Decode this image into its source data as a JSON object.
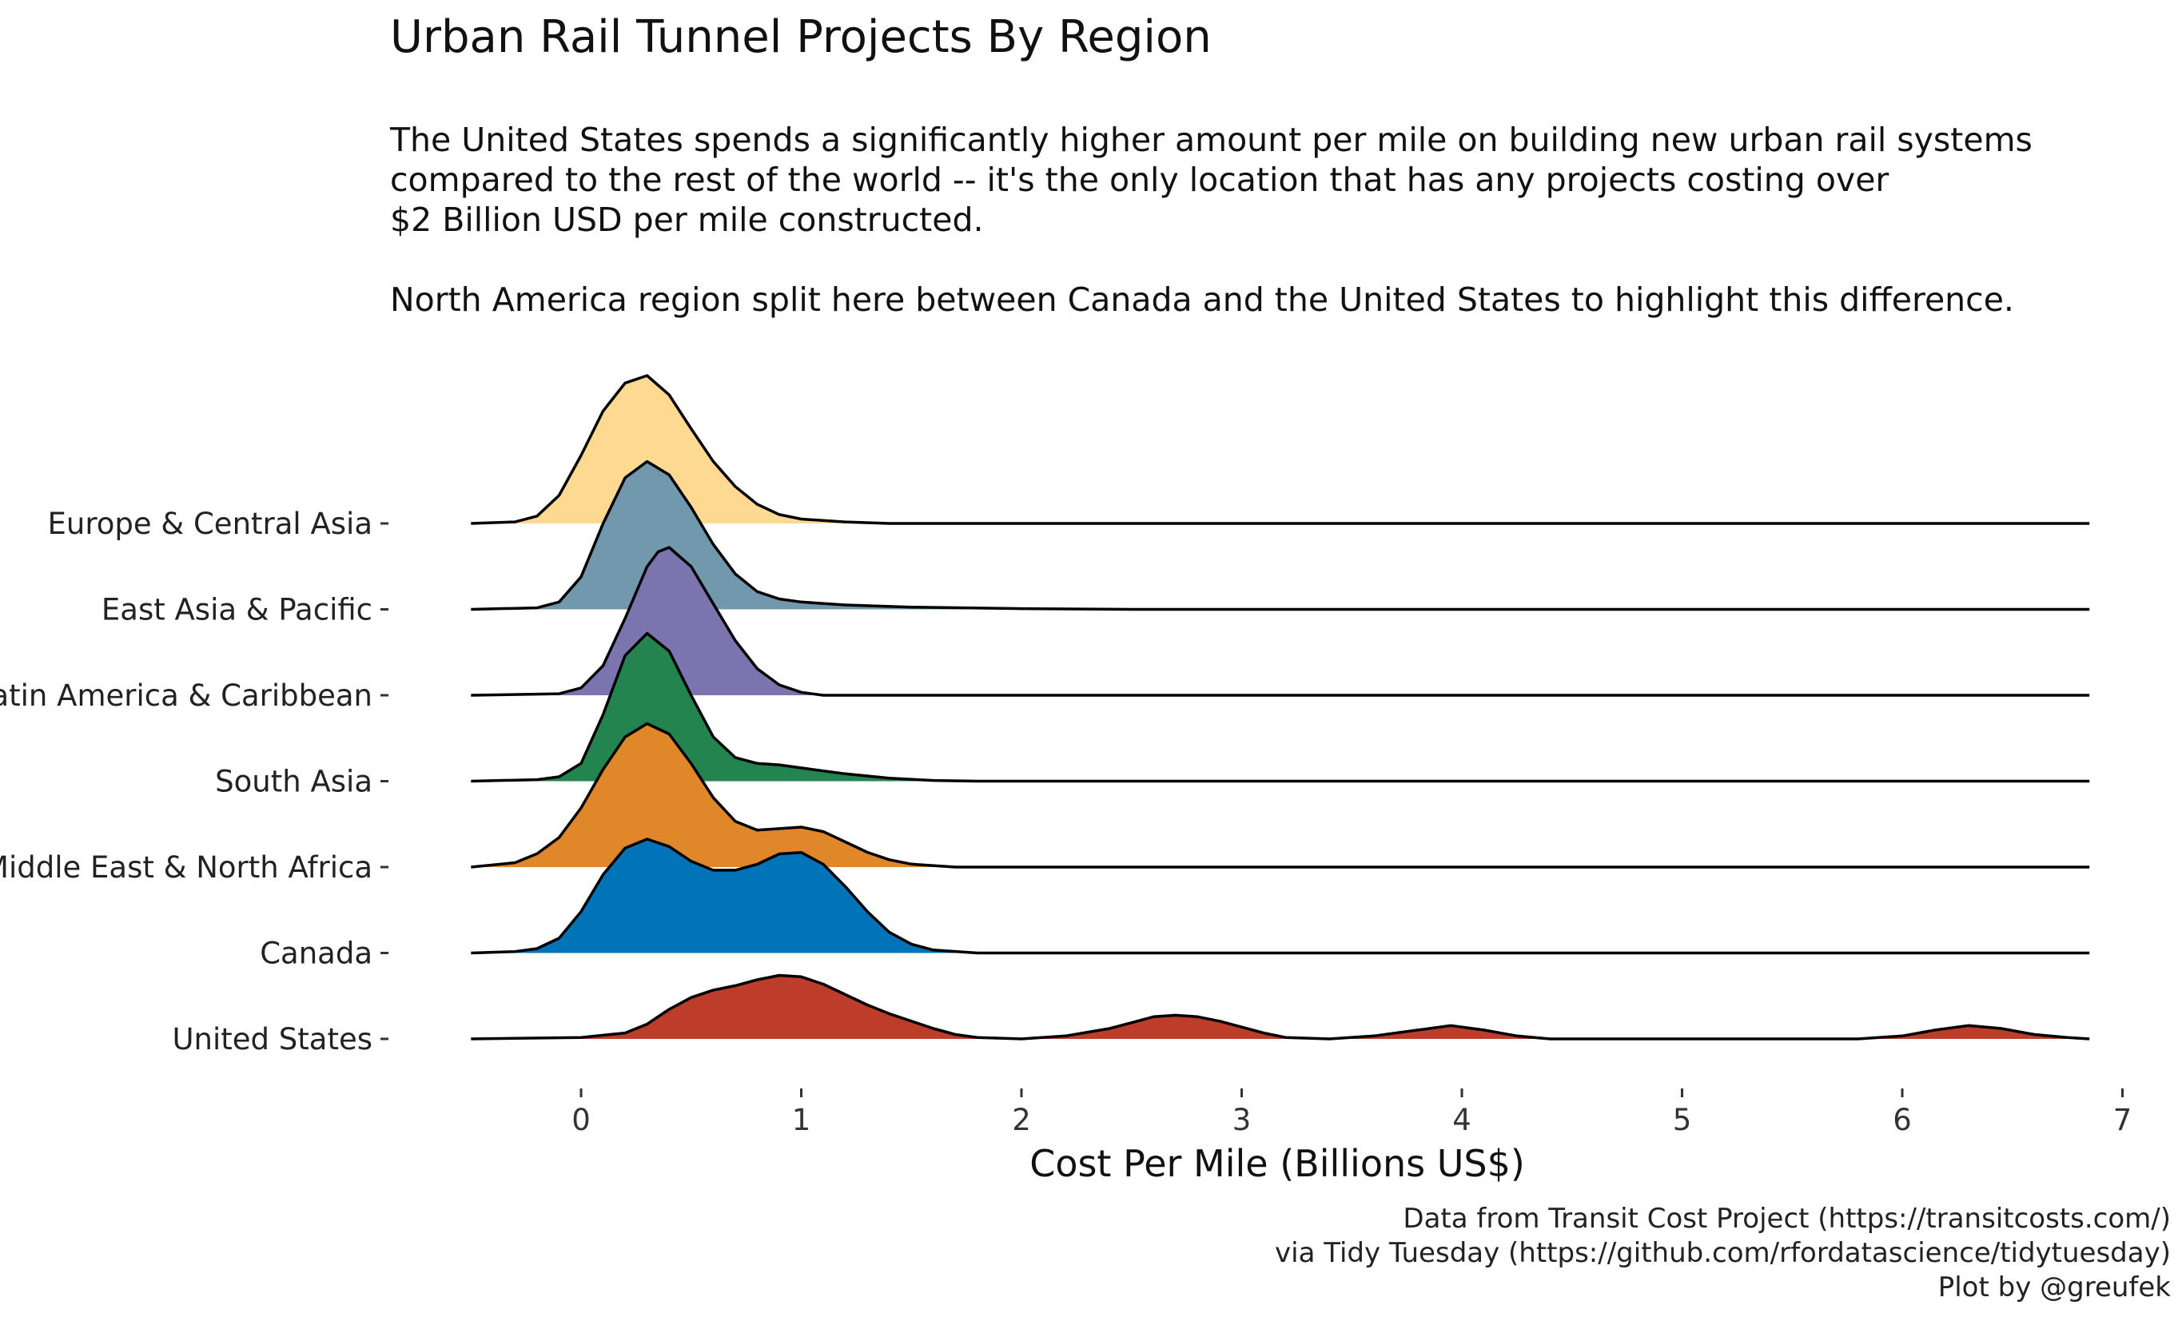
{
  "header": {
    "title": "Urban Rail Tunnel Projects By Region",
    "subtitle_lines": [
      "The United States spends a significantly higher amount per mile on building new urban rail systems",
      "compared to the rest of the world -- it's the only location that has any projects costing over",
      "$2 Billion USD per mile constructed.",
      "North America region split here between Canada and the United States to highlight this difference."
    ]
  },
  "caption": {
    "lines": [
      "Data from Transit Cost Project (https://transitcosts.com/)",
      "via Tidy Tuesday (https://github.com/rfordatascience/tidytuesday)",
      "Plot by @greufek"
    ]
  },
  "chart_data": {
    "type": "ridgeline density",
    "xlabel": "Cost Per Mile (Billions US$)",
    "xlim": [
      -0.5,
      6.85
    ],
    "x_ticks": [
      0,
      1,
      2,
      3,
      4,
      5,
      6,
      7
    ],
    "grid": false,
    "legend": "none",
    "series": [
      {
        "name": "Europe & Central Asia",
        "color": "#fdd992",
        "density": [
          [
            -0.5,
            0
          ],
          [
            -0.3,
            0.01
          ],
          [
            -0.2,
            0.05
          ],
          [
            -0.1,
            0.19
          ],
          [
            0,
            0.46
          ],
          [
            0.1,
            0.76
          ],
          [
            0.2,
            0.95
          ],
          [
            0.3,
            1.0
          ],
          [
            0.4,
            0.87
          ],
          [
            0.5,
            0.64
          ],
          [
            0.6,
            0.42
          ],
          [
            0.7,
            0.25
          ],
          [
            0.8,
            0.13
          ],
          [
            0.9,
            0.06
          ],
          [
            1.0,
            0.03
          ],
          [
            1.2,
            0.01
          ],
          [
            1.4,
            0
          ],
          [
            6.85,
            0
          ]
        ]
      },
      {
        "name": "East Asia & Pacific",
        "color": "#7298ad",
        "density": [
          [
            -0.5,
            0
          ],
          [
            -0.2,
            0.01
          ],
          [
            -0.1,
            0.05
          ],
          [
            0,
            0.22
          ],
          [
            0.1,
            0.58
          ],
          [
            0.2,
            0.89
          ],
          [
            0.3,
            1.0
          ],
          [
            0.4,
            0.91
          ],
          [
            0.5,
            0.69
          ],
          [
            0.6,
            0.44
          ],
          [
            0.7,
            0.24
          ],
          [
            0.8,
            0.12
          ],
          [
            0.9,
            0.07
          ],
          [
            1.0,
            0.05
          ],
          [
            1.2,
            0.03
          ],
          [
            1.5,
            0.015
          ],
          [
            2.0,
            0.005
          ],
          [
            2.5,
            0
          ],
          [
            6.85,
            0
          ]
        ]
      },
      {
        "name": "Latin America & Caribbean",
        "color": "#7b74ae",
        "density": [
          [
            -0.5,
            0
          ],
          [
            -0.1,
            0.01
          ],
          [
            0,
            0.05
          ],
          [
            0.1,
            0.2
          ],
          [
            0.2,
            0.52
          ],
          [
            0.3,
            0.87
          ],
          [
            0.35,
            0.97
          ],
          [
            0.4,
            1.0
          ],
          [
            0.5,
            0.87
          ],
          [
            0.6,
            0.62
          ],
          [
            0.7,
            0.37
          ],
          [
            0.8,
            0.18
          ],
          [
            0.9,
            0.07
          ],
          [
            1.0,
            0.02
          ],
          [
            1.1,
            0
          ],
          [
            6.85,
            0
          ]
        ]
      },
      {
        "name": "South Asia",
        "color": "#23844f",
        "density": [
          [
            -0.5,
            0
          ],
          [
            -0.2,
            0.01
          ],
          [
            -0.1,
            0.03
          ],
          [
            0,
            0.12
          ],
          [
            0.1,
            0.45
          ],
          [
            0.2,
            0.85
          ],
          [
            0.3,
            1.0
          ],
          [
            0.4,
            0.88
          ],
          [
            0.5,
            0.58
          ],
          [
            0.6,
            0.3
          ],
          [
            0.7,
            0.16
          ],
          [
            0.8,
            0.12
          ],
          [
            0.9,
            0.11
          ],
          [
            1.0,
            0.09
          ],
          [
            1.2,
            0.05
          ],
          [
            1.4,
            0.02
          ],
          [
            1.6,
            0.005
          ],
          [
            1.8,
            0
          ],
          [
            6.85,
            0
          ]
        ]
      },
      {
        "name": "Middle East & North Africa",
        "color": "#e0872a",
        "density": [
          [
            -0.5,
            0
          ],
          [
            -0.3,
            0.03
          ],
          [
            -0.2,
            0.09
          ],
          [
            -0.1,
            0.2
          ],
          [
            0,
            0.4
          ],
          [
            0.1,
            0.66
          ],
          [
            0.2,
            0.88
          ],
          [
            0.3,
            0.97
          ],
          [
            0.4,
            0.9
          ],
          [
            0.5,
            0.7
          ],
          [
            0.6,
            0.47
          ],
          [
            0.7,
            0.31
          ],
          [
            0.8,
            0.25
          ],
          [
            0.9,
            0.26
          ],
          [
            1.0,
            0.27
          ],
          [
            1.1,
            0.24
          ],
          [
            1.2,
            0.17
          ],
          [
            1.3,
            0.1
          ],
          [
            1.4,
            0.05
          ],
          [
            1.5,
            0.02
          ],
          [
            1.7,
            0
          ],
          [
            6.85,
            0
          ]
        ]
      },
      {
        "name": "Canada",
        "color": "#0073b9",
        "density": [
          [
            -0.5,
            0
          ],
          [
            -0.3,
            0.01
          ],
          [
            -0.2,
            0.03
          ],
          [
            -0.1,
            0.1
          ],
          [
            0,
            0.28
          ],
          [
            0.1,
            0.53
          ],
          [
            0.2,
            0.71
          ],
          [
            0.3,
            0.77
          ],
          [
            0.4,
            0.72
          ],
          [
            0.5,
            0.62
          ],
          [
            0.6,
            0.56
          ],
          [
            0.7,
            0.56
          ],
          [
            0.8,
            0.6
          ],
          [
            0.9,
            0.67
          ],
          [
            1.0,
            0.68
          ],
          [
            1.1,
            0.6
          ],
          [
            1.2,
            0.45
          ],
          [
            1.3,
            0.28
          ],
          [
            1.4,
            0.14
          ],
          [
            1.5,
            0.06
          ],
          [
            1.6,
            0.02
          ],
          [
            1.8,
            0
          ],
          [
            6.85,
            0
          ]
        ]
      },
      {
        "name": "United States",
        "color": "#bd3c2a",
        "density": [
          [
            -0.5,
            0
          ],
          [
            0,
            0.01
          ],
          [
            0.2,
            0.04
          ],
          [
            0.3,
            0.1
          ],
          [
            0.4,
            0.2
          ],
          [
            0.5,
            0.28
          ],
          [
            0.6,
            0.33
          ],
          [
            0.7,
            0.36
          ],
          [
            0.8,
            0.4
          ],
          [
            0.9,
            0.43
          ],
          [
            1.0,
            0.42
          ],
          [
            1.1,
            0.37
          ],
          [
            1.2,
            0.3
          ],
          [
            1.3,
            0.23
          ],
          [
            1.4,
            0.17
          ],
          [
            1.5,
            0.12
          ],
          [
            1.6,
            0.07
          ],
          [
            1.7,
            0.03
          ],
          [
            1.8,
            0.01
          ],
          [
            2.0,
            0
          ],
          [
            2.2,
            0.02
          ],
          [
            2.4,
            0.07
          ],
          [
            2.5,
            0.11
          ],
          [
            2.6,
            0.15
          ],
          [
            2.7,
            0.16
          ],
          [
            2.8,
            0.15
          ],
          [
            2.9,
            0.12
          ],
          [
            3.0,
            0.08
          ],
          [
            3.1,
            0.04
          ],
          [
            3.2,
            0.01
          ],
          [
            3.4,
            0
          ],
          [
            3.6,
            0.02
          ],
          [
            3.8,
            0.06
          ],
          [
            3.95,
            0.09
          ],
          [
            4.1,
            0.06
          ],
          [
            4.25,
            0.02
          ],
          [
            4.4,
            0
          ],
          [
            5.8,
            0
          ],
          [
            6.0,
            0.02
          ],
          [
            6.15,
            0.06
          ],
          [
            6.3,
            0.09
          ],
          [
            6.45,
            0.07
          ],
          [
            6.6,
            0.03
          ],
          [
            6.75,
            0.01
          ],
          [
            6.85,
            0
          ]
        ]
      }
    ]
  }
}
